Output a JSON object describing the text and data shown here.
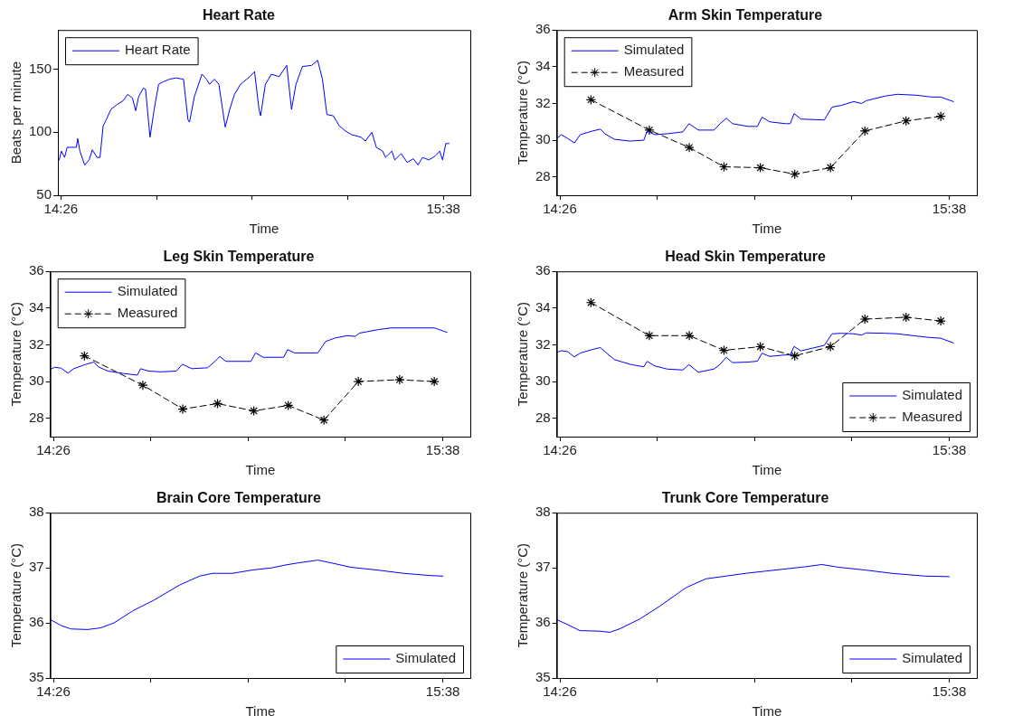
{
  "chart_data": [
    {
      "type": "line",
      "title": "Heart Rate",
      "xlabel": "Time",
      "ylabel": "Beats per minute",
      "xlim": [
        14.424,
        15.718
      ],
      "xticks": [
        {
          "value": 14.4333,
          "label": "14:26"
        },
        {
          "value": 14.7333,
          "label": null
        },
        {
          "value": 15.0333,
          "label": null
        },
        {
          "value": 15.3333,
          "label": null
        },
        {
          "value": 15.6333,
          "label": "15:38"
        }
      ],
      "ylim": [
        50,
        181
      ],
      "yticks": [
        50,
        100,
        150
      ],
      "grid": false,
      "legend": "top left",
      "series": [
        {
          "name": "Heart Rate",
          "color": "#0000ff",
          "marker": "none",
          "line_style": "solid",
          "x": [
            14.428,
            14.435,
            14.445,
            14.453,
            14.482,
            14.486,
            14.493,
            14.508,
            14.522,
            14.532,
            14.547,
            14.556,
            14.566,
            14.576,
            14.59,
            14.61,
            14.629,
            14.643,
            14.658,
            14.668,
            14.677,
            14.692,
            14.699,
            14.713,
            14.726,
            14.74,
            14.755,
            14.774,
            14.794,
            14.818,
            14.832,
            14.837,
            14.852,
            14.876,
            14.89,
            14.9,
            14.915,
            14.929,
            14.949,
            14.963,
            14.978,
            14.997,
            15.026,
            15.041,
            15.055,
            15.06,
            15.075,
            15.094,
            15.118,
            15.142,
            15.157,
            15.171,
            15.191,
            15.22,
            15.239,
            15.254,
            15.268,
            15.288,
            15.307,
            15.326,
            15.346,
            15.375,
            15.389,
            15.409,
            15.423,
            15.443,
            15.452,
            15.472,
            15.481,
            15.501,
            15.52,
            15.539,
            15.554,
            15.568,
            15.588,
            15.607,
            15.622,
            15.631,
            15.641,
            15.651
          ],
          "values": [
            78,
            85,
            80,
            88,
            88,
            95,
            85,
            74,
            78,
            86,
            80,
            80,
            105,
            110,
            118,
            122,
            125,
            130,
            127,
            117,
            128,
            135,
            134,
            96,
            118,
            138,
            140,
            142,
            143,
            142,
            110,
            108,
            128,
            146,
            142,
            138,
            142,
            138,
            104,
            118,
            130,
            138,
            144,
            148,
            118,
            113,
            138,
            146,
            144,
            153,
            118,
            138,
            152,
            153,
            157,
            142,
            114,
            113,
            105,
            101,
            98,
            96,
            93,
            100,
            88,
            85,
            80,
            85,
            78,
            83,
            76,
            79,
            74,
            80,
            78,
            81,
            85,
            78,
            91,
            91
          ]
        }
      ]
    },
    {
      "type": "line",
      "title": "Arm Skin Temperature",
      "xlabel": "Time",
      "ylabel": "Temperature (°C)",
      "xlim": [
        14.424,
        15.718
      ],
      "xticks": [
        {
          "value": 14.4333,
          "label": "14:26"
        },
        {
          "value": 14.7333,
          "label": null
        },
        {
          "value": 15.0333,
          "label": null
        },
        {
          "value": 15.3333,
          "label": null
        },
        {
          "value": 15.6333,
          "label": "15:38"
        }
      ],
      "ylim": [
        27,
        36
      ],
      "yticks": [
        28,
        30,
        32,
        34,
        36
      ],
      "grid": false,
      "legend": "top left",
      "series": [
        {
          "name": "Simulated",
          "color": "#0000ff",
          "marker": "none",
          "line_style": "solid",
          "x": [
            14.424,
            14.438,
            14.457,
            14.478,
            14.496,
            14.534,
            14.558,
            14.572,
            14.601,
            14.649,
            14.692,
            14.702,
            14.726,
            14.764,
            14.812,
            14.831,
            14.86,
            14.908,
            14.927,
            14.946,
            14.965,
            15.013,
            15.042,
            15.056,
            15.08,
            15.128,
            15.143,
            15.155,
            15.176,
            15.248,
            15.272,
            15.301,
            15.339,
            15.363,
            15.377,
            15.435,
            15.473,
            15.531,
            15.579,
            15.607,
            15.646
          ],
          "values": [
            30.1,
            30.3,
            30.1,
            29.85,
            30.3,
            30.5,
            30.6,
            30.35,
            30.05,
            29.95,
            30.0,
            30.5,
            30.3,
            30.35,
            30.45,
            30.9,
            30.55,
            30.55,
            30.9,
            31.2,
            30.9,
            30.75,
            30.75,
            31.25,
            31.0,
            30.9,
            30.9,
            31.45,
            31.15,
            31.1,
            31.8,
            31.9,
            32.1,
            32.0,
            32.15,
            32.4,
            32.5,
            32.45,
            32.35,
            32.35,
            32.1
          ]
        },
        {
          "name": "Measured",
          "color": "#000000",
          "marker": "cross",
          "line_style": "dashed",
          "x": [
            14.529,
            14.709,
            14.832,
            14.939,
            15.051,
            15.157,
            15.267,
            15.373,
            15.5,
            15.607
          ],
          "values": [
            32.2,
            30.55,
            29.6,
            28.55,
            28.5,
            28.15,
            28.5,
            30.5,
            31.05,
            31.3
          ]
        }
      ]
    },
    {
      "type": "line",
      "title": "Leg Skin Temperature",
      "xlabel": "Time",
      "ylabel": "Temperature (°C)",
      "xlim": [
        14.424,
        15.718
      ],
      "xticks": [
        {
          "value": 14.4333,
          "label": "14:26"
        },
        {
          "value": 14.7333,
          "label": null
        },
        {
          "value": 15.0333,
          "label": null
        },
        {
          "value": 15.3333,
          "label": null
        },
        {
          "value": 15.6333,
          "label": "15:38"
        }
      ],
      "ylim": [
        27,
        36
      ],
      "yticks": [
        28,
        30,
        32,
        34,
        36
      ],
      "grid": false,
      "legend": "top left",
      "series": [
        {
          "name": "Simulated",
          "color": "#0000ff",
          "marker": "none",
          "line_style": "solid",
          "x": [
            14.424,
            14.438,
            14.457,
            14.478,
            14.496,
            14.534,
            14.558,
            14.572,
            14.601,
            14.649,
            14.692,
            14.702,
            14.726,
            14.764,
            14.812,
            14.831,
            14.86,
            14.908,
            14.927,
            14.946,
            14.965,
            15.013,
            15.042,
            15.056,
            15.08,
            15.128,
            15.143,
            15.155,
            15.176,
            15.248,
            15.272,
            15.301,
            15.339,
            15.363,
            15.377,
            15.435,
            15.473,
            15.531,
            15.579,
            15.607,
            15.646
          ],
          "values": [
            30.67,
            30.78,
            30.73,
            30.46,
            30.7,
            30.94,
            31.06,
            30.8,
            30.57,
            30.44,
            30.35,
            30.7,
            30.57,
            30.53,
            30.57,
            30.94,
            30.7,
            30.75,
            31.03,
            31.36,
            31.1,
            31.1,
            31.1,
            31.56,
            31.32,
            31.32,
            31.32,
            31.74,
            31.56,
            31.56,
            32.18,
            32.37,
            32.5,
            32.46,
            32.64,
            32.83,
            32.92,
            32.92,
            32.92,
            32.92,
            32.68
          ]
        },
        {
          "name": "Measured",
          "color": "#000000",
          "marker": "cross",
          "line_style": "dashed",
          "x": [
            14.529,
            14.709,
            14.832,
            14.939,
            15.051,
            15.157,
            15.267,
            15.373,
            15.5,
            15.607
          ],
          "values": [
            31.4,
            29.8,
            28.5,
            28.8,
            28.4,
            28.7,
            27.9,
            30.0,
            30.1,
            30.0
          ]
        }
      ]
    },
    {
      "type": "line",
      "title": "Head Skin Temperature",
      "xlabel": "Time",
      "ylabel": "Temperature (°C)",
      "xlim": [
        14.424,
        15.718
      ],
      "xticks": [
        {
          "value": 14.4333,
          "label": "14:26"
        },
        {
          "value": 14.7333,
          "label": null
        },
        {
          "value": 15.0333,
          "label": null
        },
        {
          "value": 15.3333,
          "label": null
        },
        {
          "value": 15.6333,
          "label": "15:38"
        }
      ],
      "ylim": [
        27,
        36
      ],
      "yticks": [
        28,
        30,
        32,
        34,
        36
      ],
      "grid": false,
      "legend": "bottom right",
      "series": [
        {
          "name": "Simulated",
          "color": "#0000ff",
          "marker": "none",
          "line_style": "solid",
          "x": [
            14.424,
            14.438,
            14.457,
            14.478,
            14.496,
            14.534,
            14.558,
            14.572,
            14.601,
            14.649,
            14.692,
            14.702,
            14.726,
            14.764,
            14.812,
            14.831,
            14.86,
            14.908,
            14.927,
            14.946,
            14.965,
            15.013,
            15.042,
            15.056,
            15.08,
            15.128,
            15.143,
            15.155,
            15.176,
            15.248,
            15.272,
            15.301,
            15.339,
            15.363,
            15.377,
            15.435,
            15.473,
            15.531,
            15.579,
            15.607,
            15.646
          ],
          "values": [
            31.59,
            31.68,
            31.63,
            31.34,
            31.55,
            31.75,
            31.85,
            31.63,
            31.2,
            30.94,
            30.8,
            31.1,
            30.85,
            30.68,
            30.63,
            30.92,
            30.51,
            30.68,
            30.94,
            31.32,
            31.03,
            31.06,
            31.11,
            31.54,
            31.37,
            31.45,
            31.45,
            31.91,
            31.67,
            31.97,
            32.6,
            32.63,
            32.6,
            32.53,
            32.65,
            32.63,
            32.6,
            32.48,
            32.39,
            32.36,
            32.1
          ]
        },
        {
          "name": "Measured",
          "color": "#000000",
          "marker": "cross",
          "line_style": "dashed",
          "x": [
            14.529,
            14.709,
            14.832,
            14.939,
            15.051,
            15.157,
            15.267,
            15.373,
            15.5,
            15.607
          ],
          "values": [
            34.3,
            32.5,
            32.5,
            31.7,
            31.9,
            31.4,
            31.9,
            33.4,
            33.5,
            33.3
          ]
        }
      ]
    },
    {
      "type": "line",
      "title": "Brain Core Temperature",
      "xlabel": "Time",
      "ylabel": "Temperature (°C)",
      "xlim": [
        14.424,
        15.718
      ],
      "xticks": [
        {
          "value": 14.4333,
          "label": "14:26"
        },
        {
          "value": 14.7333,
          "label": null
        },
        {
          "value": 15.0333,
          "label": null
        },
        {
          "value": 15.3333,
          "label": null
        },
        {
          "value": 15.6333,
          "label": "15:38"
        }
      ],
      "ylim": [
        35,
        38
      ],
      "yticks": [
        35,
        36,
        37,
        38
      ],
      "grid": false,
      "legend": "bottom right",
      "series": [
        {
          "name": "Simulated",
          "color": "#0000ff",
          "marker": "none",
          "line_style": "solid",
          "x": [
            14.424,
            14.458,
            14.488,
            14.539,
            14.579,
            14.62,
            14.681,
            14.742,
            14.823,
            14.884,
            14.924,
            14.985,
            15.046,
            15.107,
            15.147,
            15.188,
            15.249,
            15.289,
            15.35,
            15.431,
            15.512,
            15.593,
            15.634
          ],
          "values": [
            36.06,
            35.95,
            35.89,
            35.88,
            35.91,
            36.0,
            36.23,
            36.41,
            36.69,
            36.85,
            36.9,
            36.9,
            36.96,
            37.0,
            37.05,
            37.09,
            37.14,
            37.09,
            37.01,
            36.96,
            36.9,
            36.86,
            36.85
          ]
        }
      ]
    },
    {
      "type": "line",
      "title": "Trunk Core Temperature",
      "xlabel": "Time",
      "ylabel": "Temperature (°C)",
      "xlim": [
        14.424,
        15.718
      ],
      "xticks": [
        {
          "value": 14.4333,
          "label": "14:26"
        },
        {
          "value": 14.7333,
          "label": null
        },
        {
          "value": 15.0333,
          "label": null
        },
        {
          "value": 15.3333,
          "label": null
        },
        {
          "value": 15.6333,
          "label": "15:38"
        }
      ],
      "ylim": [
        35,
        38
      ],
      "yticks": [
        35,
        36,
        37,
        38
      ],
      "grid": false,
      "legend": "bottom right",
      "series": [
        {
          "name": "Simulated",
          "color": "#0000ff",
          "marker": "none",
          "line_style": "solid",
          "x": [
            14.424,
            14.464,
            14.495,
            14.556,
            14.587,
            14.617,
            14.679,
            14.74,
            14.822,
            14.883,
            14.945,
            15.006,
            15.067,
            15.129,
            15.19,
            15.241,
            15.292,
            15.374,
            15.456,
            15.558,
            15.633
          ],
          "values": [
            36.06,
            35.95,
            35.86,
            35.85,
            35.83,
            35.89,
            36.07,
            36.3,
            36.64,
            36.8,
            36.85,
            36.9,
            36.94,
            36.98,
            37.02,
            37.06,
            37.01,
            36.96,
            36.9,
            36.85,
            36.84
          ]
        }
      ]
    }
  ]
}
